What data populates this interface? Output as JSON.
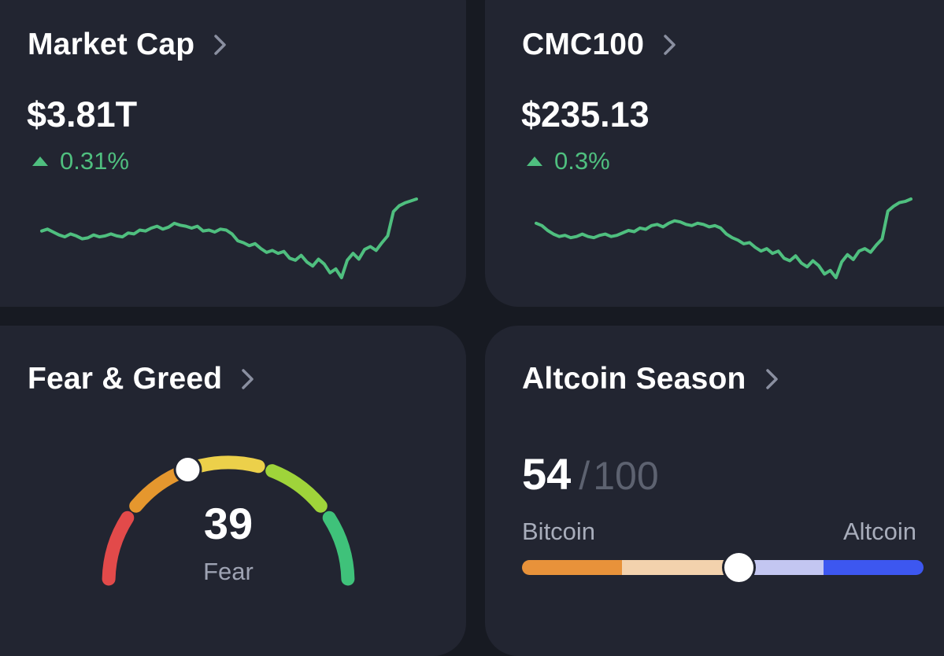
{
  "colors": {
    "background": "#171a22",
    "card": "#222531",
    "positive": "#4fbf7f",
    "bitcoin_dark": "#e8923a",
    "bitcoin_light": "#f3d2ad",
    "altcoin_light": "#c3c6f1",
    "altcoin_dark": "#3d57f0"
  },
  "market_cap": {
    "title": "Market Cap",
    "value": "$3.81T",
    "change": "0.31%",
    "direction": "up",
    "chevron_icon": "chevron-right-icon",
    "sparkline": [
      56.8,
      57.0,
      56.7,
      56.4,
      56.2,
      56.5,
      56.3,
      56.0,
      56.1,
      56.4,
      56.2,
      56.3,
      56.5,
      56.3,
      56.2,
      56.6,
      56.5,
      56.9,
      56.8,
      57.1,
      57.3,
      57.0,
      57.2,
      57.6,
      57.4,
      57.3,
      57.1,
      57.3,
      56.8,
      56.9,
      56.7,
      57.0,
      56.9,
      56.5,
      55.8,
      55.6,
      55.3,
      55.5,
      55.0,
      54.6,
      54.8,
      54.5,
      54.7,
      54.0,
      53.8,
      54.3,
      53.6,
      53.2,
      53.9,
      53.4,
      52.5,
      52.9,
      52.0,
      53.8,
      54.5,
      53.9,
      54.9,
      55.2,
      54.8,
      55.6,
      56.3,
      58.8,
      59.4,
      59.7,
      59.9,
      60.1
    ]
  },
  "cmc100": {
    "title": "CMC100",
    "value": "$235.13",
    "change": "0.3%",
    "direction": "up",
    "chevron_icon": "chevron-right-icon",
    "sparkline": [
      226.2,
      226.0,
      225.6,
      225.3,
      225.1,
      225.2,
      225.0,
      225.1,
      225.3,
      225.1,
      225.0,
      225.2,
      225.3,
      225.1,
      225.2,
      225.4,
      225.6,
      225.5,
      225.8,
      225.7,
      226.0,
      226.1,
      225.9,
      226.2,
      226.4,
      226.3,
      226.1,
      226.0,
      226.2,
      226.1,
      225.9,
      226.0,
      225.8,
      225.3,
      225.0,
      224.8,
      224.5,
      224.6,
      224.2,
      223.9,
      224.1,
      223.7,
      223.9,
      223.3,
      223.1,
      223.5,
      222.9,
      222.6,
      223.1,
      222.7,
      222.0,
      222.3,
      221.7,
      223.0,
      223.6,
      223.2,
      223.9,
      224.1,
      223.8,
      224.4,
      224.9,
      227.2,
      227.6,
      227.9,
      228.0,
      228.2
    ]
  },
  "fear_greed": {
    "title": "Fear & Greed",
    "value": "39",
    "label": "Fear",
    "level": 39,
    "chevron_icon": "chevron-right-icon",
    "segment_colors": [
      "#e24a4a",
      "#e5972e",
      "#ecd04a",
      "#9fd43a",
      "#3fc27a"
    ]
  },
  "altcoin_season": {
    "title": "Altcoin Season",
    "value": "54",
    "separator": "/",
    "max": "100",
    "level": 54,
    "left_label": "Bitcoin",
    "right_label": "Altcoin",
    "chevron_icon": "chevron-right-icon"
  }
}
